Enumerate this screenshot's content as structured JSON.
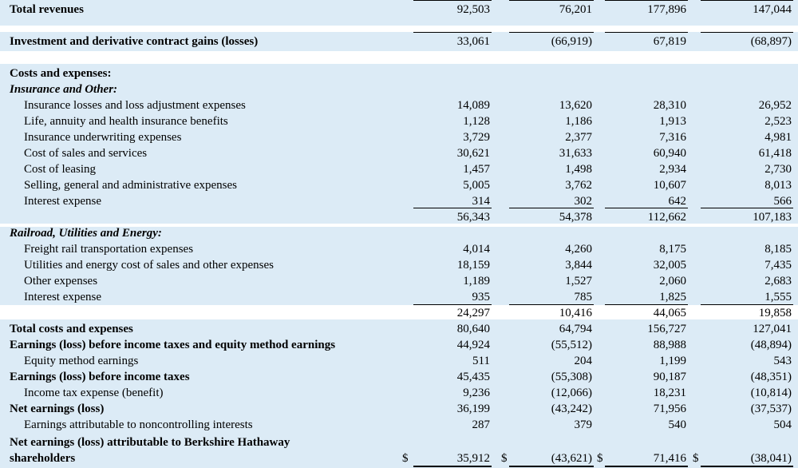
{
  "currency_symbol": "$",
  "rows": [
    {
      "label": "Total revenues",
      "style": "bold",
      "values": [
        "92,503",
        "76,201",
        "177,896",
        "147,044"
      ]
    },
    {
      "label": "Investment and derivative contract gains (losses)",
      "style": "bold",
      "values": [
        "33,061",
        "(66,919)",
        "67,819",
        "(68,897)"
      ]
    },
    {
      "label": "Costs and expenses:",
      "style": "bold",
      "values": []
    },
    {
      "label": "Insurance and Other:",
      "style": "bold-italic",
      "values": []
    },
    {
      "label": "Insurance losses and loss adjustment expenses",
      "style": "indent",
      "values": [
        "14,089",
        "13,620",
        "28,310",
        "26,952"
      ]
    },
    {
      "label": "Life, annuity and health insurance benefits",
      "style": "indent",
      "values": [
        "1,128",
        "1,186",
        "1,913",
        "2,523"
      ]
    },
    {
      "label": "Insurance underwriting expenses",
      "style": "indent",
      "values": [
        "3,729",
        "2,377",
        "7,316",
        "4,981"
      ]
    },
    {
      "label": "Cost of sales and services",
      "style": "indent",
      "values": [
        "30,621",
        "31,633",
        "60,940",
        "61,418"
      ]
    },
    {
      "label": "Cost of leasing",
      "style": "indent",
      "values": [
        "1,457",
        "1,498",
        "2,934",
        "2,730"
      ]
    },
    {
      "label": "Selling, general and administrative expenses",
      "style": "indent",
      "values": [
        "5,005",
        "3,762",
        "10,607",
        "8,013"
      ]
    },
    {
      "label": "Interest expense",
      "style": "indent",
      "values": [
        "314",
        "302",
        "642",
        "566"
      ]
    },
    {
      "label": "",
      "style": "plain",
      "values": [
        "56,343",
        "54,378",
        "112,662",
        "107,183"
      ]
    },
    {
      "label": "Railroad, Utilities and Energy:",
      "style": "bold-italic",
      "values": []
    },
    {
      "label": "Freight rail transportation expenses",
      "style": "indent",
      "values": [
        "4,014",
        "4,260",
        "8,175",
        "8,185"
      ]
    },
    {
      "label": "Utilities and energy cost of sales and other expenses",
      "style": "indent",
      "values": [
        "18,159",
        "3,844",
        "32,005",
        "7,435"
      ]
    },
    {
      "label": "Other expenses",
      "style": "indent",
      "values": [
        "1,189",
        "1,527",
        "2,060",
        "2,683"
      ]
    },
    {
      "label": "Interest expense",
      "style": "indent",
      "values": [
        "935",
        "785",
        "1,825",
        "1,555"
      ]
    },
    {
      "label": "",
      "style": "plain",
      "values": [
        "24,297",
        "10,416",
        "44,065",
        "19,858"
      ]
    },
    {
      "label": "Total costs and expenses",
      "style": "bold",
      "values": [
        "80,640",
        "64,794",
        "156,727",
        "127,041"
      ]
    },
    {
      "label": "Earnings (loss) before income taxes and equity method earnings",
      "style": "bold",
      "values": [
        "44,924",
        "(55,512)",
        "88,988",
        "(48,894)"
      ]
    },
    {
      "label": "Equity method earnings",
      "style": "indent",
      "values": [
        "511",
        "204",
        "1,199",
        "543"
      ]
    },
    {
      "label": "Earnings (loss) before income taxes",
      "style": "bold",
      "values": [
        "45,435",
        "(55,308)",
        "90,187",
        "(48,351)"
      ]
    },
    {
      "label": "Income tax expense (benefit)",
      "style": "indent",
      "values": [
        "9,236",
        "(12,066)",
        "18,231",
        "(10,814)"
      ]
    },
    {
      "label": "Net earnings (loss)",
      "style": "bold",
      "values": [
        "36,199",
        "(43,242)",
        "71,956",
        "(37,537)"
      ]
    },
    {
      "label": "Earnings attributable to noncontrolling interests",
      "style": "indent",
      "values": [
        "287",
        "379",
        "540",
        "504"
      ]
    },
    {
      "label": "Net earnings (loss) attributable to Berkshire Hathaway",
      "style": "bold",
      "values": []
    },
    {
      "label": "shareholders",
      "style": "bold",
      "values": [
        "35,912",
        "(43,621)",
        "71,416",
        "(38,041)"
      ]
    }
  ]
}
